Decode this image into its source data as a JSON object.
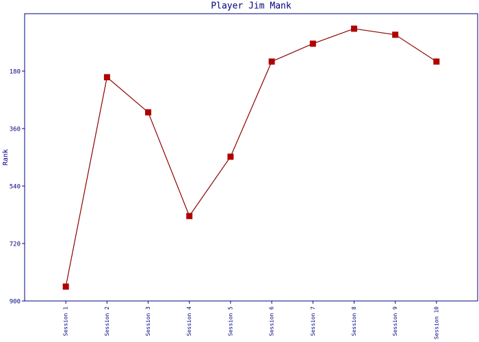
{
  "chart_data": {
    "type": "line",
    "title": "Player Jim Mank",
    "y_label": "Rank",
    "categories": [
      "Session 1",
      "Session 2",
      "Session 3",
      "Session 4",
      "Session 5",
      "Session 6",
      "Session 7",
      "Session 8",
      "Session 9",
      "Session 10"
    ],
    "series": [
      {
        "name": "Rank",
        "color": "#b00000",
        "values": [
          855,
          199,
          309,
          634,
          448,
          150,
          94,
          47,
          66,
          150
        ]
      }
    ],
    "ylim": [
      900,
      0
    ],
    "yticks": [
      180,
      360,
      540,
      720,
      900
    ],
    "grid": false
  }
}
